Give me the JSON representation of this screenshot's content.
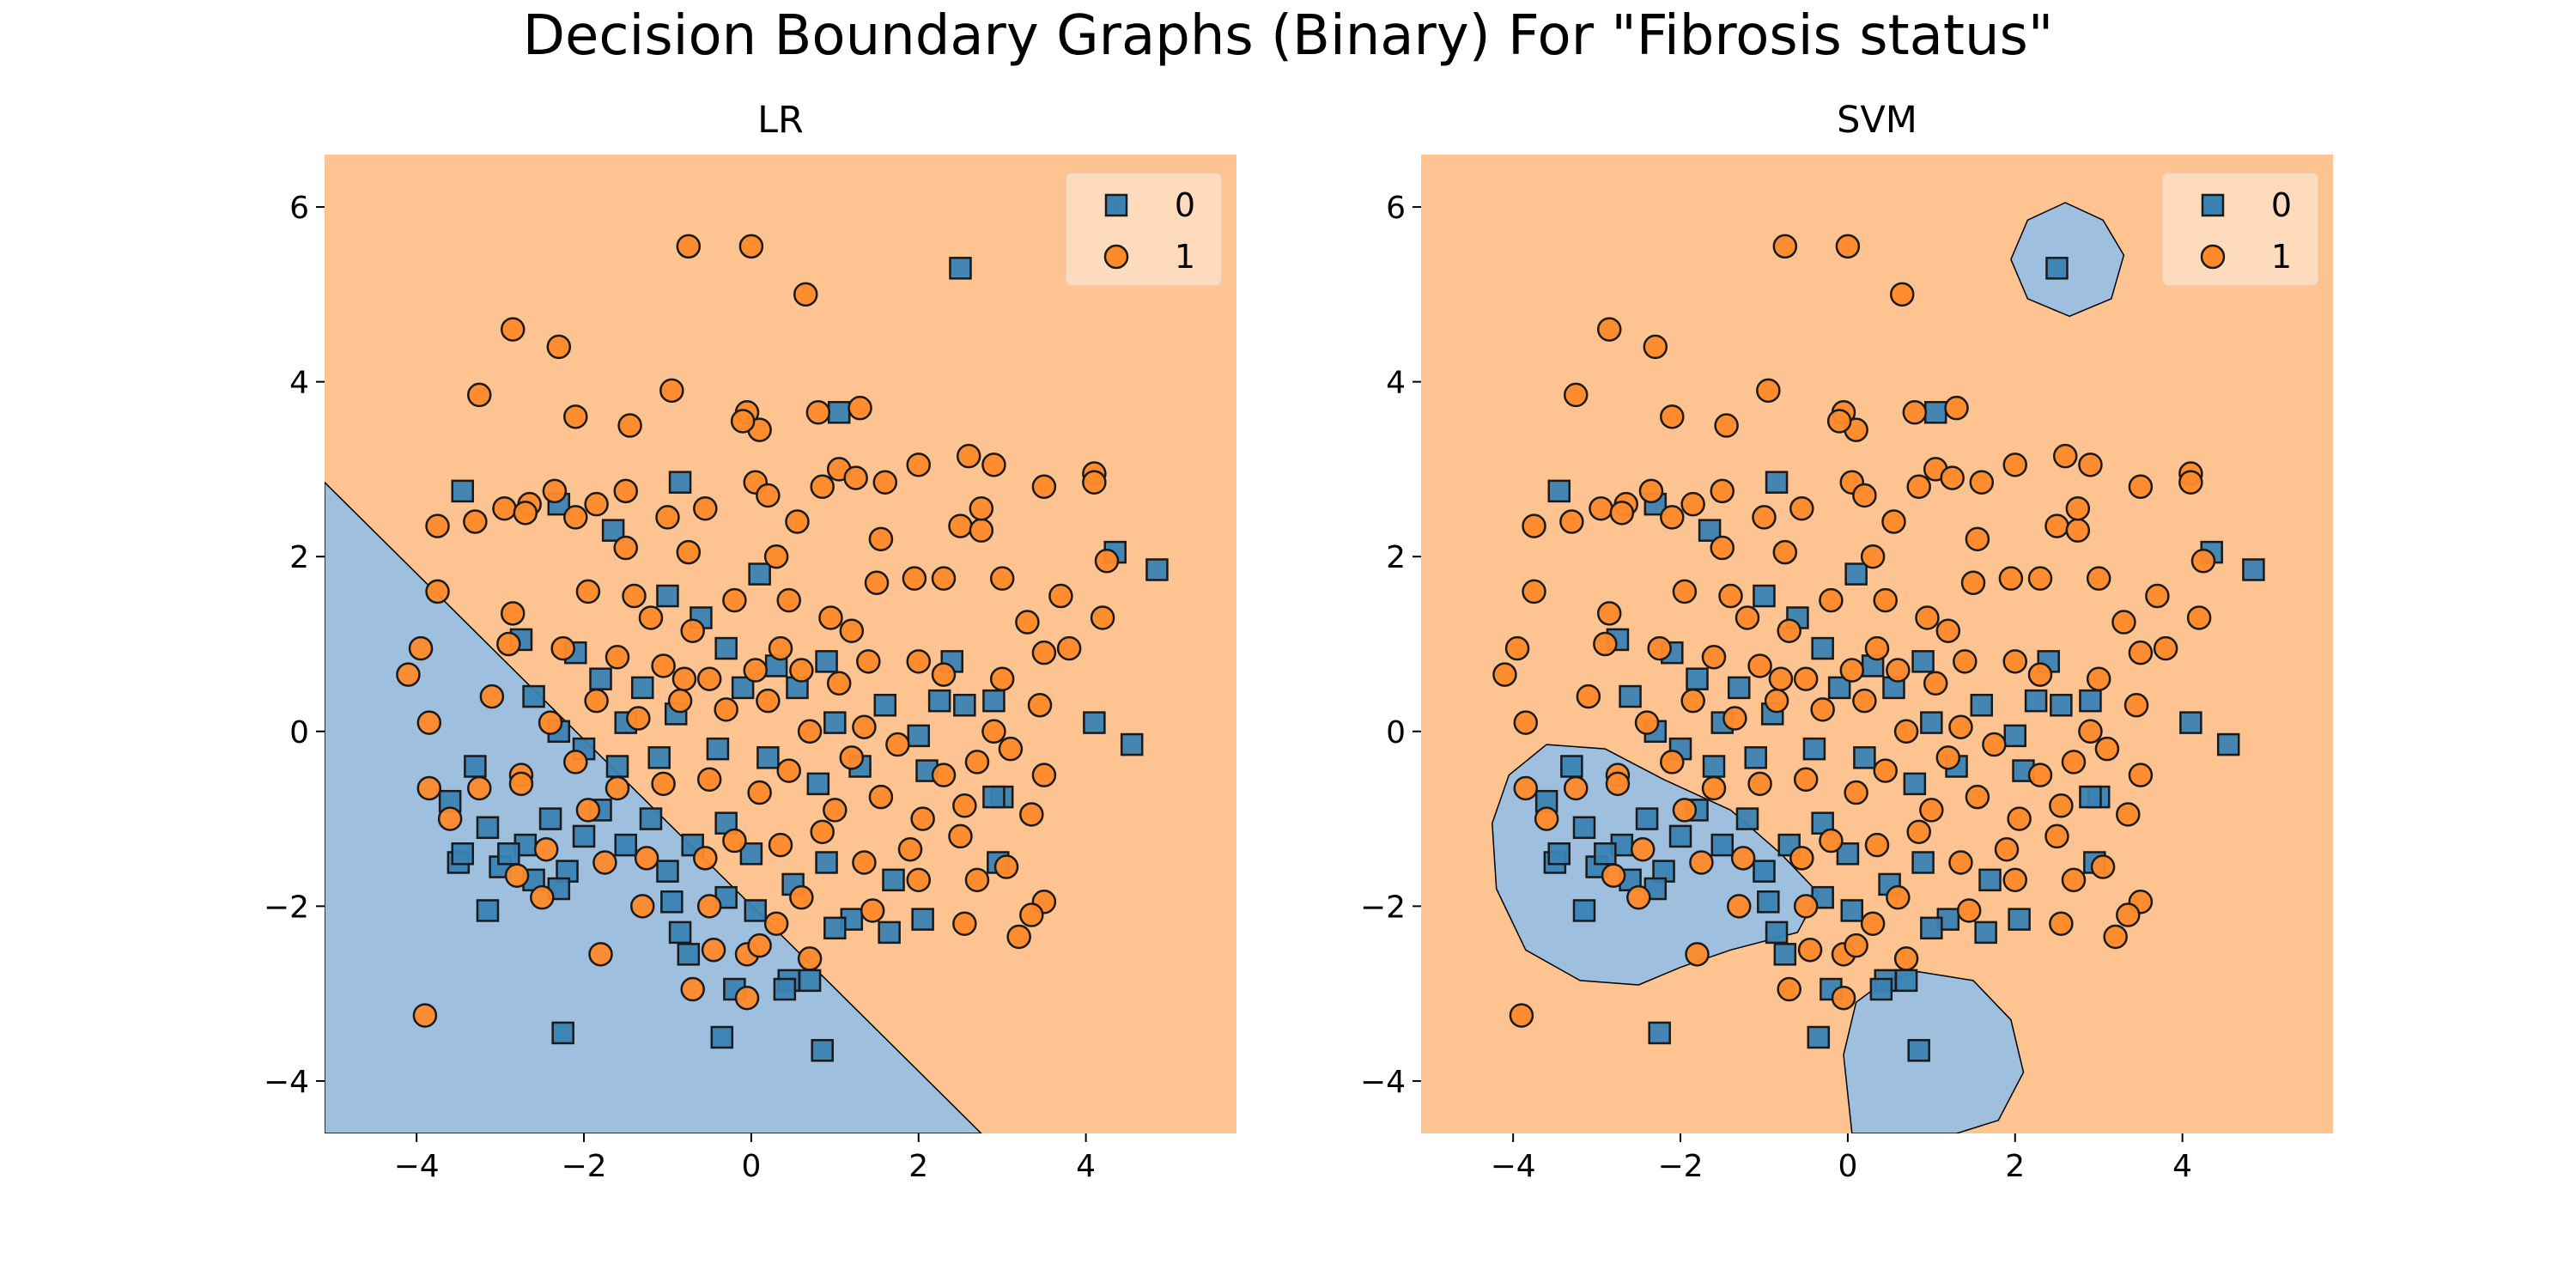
{
  "figure": {
    "title": "Decision Boundary Graphs (Binary) For \"Fibrosis status\""
  },
  "colors": {
    "class0_region": "#9ec0de",
    "class1_region": "#fdc391",
    "class0_marker": "#3a82b3",
    "class1_marker": "#ff8a2a",
    "marker_edge": "#1a1a1a"
  },
  "chart_data": [
    {
      "type": "scatter",
      "title": "LR",
      "xlabel": "",
      "ylabel": "",
      "xlim": [
        -5.1,
        5.8
      ],
      "ylim": [
        -4.6,
        6.6
      ],
      "xticks": [
        -4,
        -2,
        0,
        2,
        4
      ],
      "xtick_labels": [
        "−4",
        "−2",
        "0",
        "2",
        "4"
      ],
      "yticks": [
        -4,
        -2,
        0,
        2,
        4,
        6
      ],
      "ytick_labels": [
        "−4",
        "−2",
        "0",
        "2",
        "4",
        "6"
      ],
      "grid": false,
      "legend": {
        "position": "top-right",
        "entries": [
          {
            "label": "0",
            "marker": "square"
          },
          {
            "label": "1",
            "marker": "circle"
          }
        ]
      },
      "decision_regions": {
        "model": "linear",
        "class0_polygon": [
          [
            -5.1,
            2.85
          ],
          [
            2.75,
            -4.6
          ],
          [
            -5.1,
            -4.6
          ]
        ],
        "class1_fill": "rest of plot area"
      },
      "series": [
        {
          "name": "0",
          "marker": "square",
          "points": "shared.class0_points"
        },
        {
          "name": "1",
          "marker": "circle",
          "points": "shared.class1_points"
        }
      ]
    },
    {
      "type": "scatter",
      "title": "SVM",
      "xlabel": "",
      "ylabel": "",
      "xlim": [
        -5.1,
        5.8
      ],
      "ylim": [
        -4.6,
        6.6
      ],
      "xticks": [
        -4,
        -2,
        0,
        2,
        4
      ],
      "xtick_labels": [
        "−4",
        "−2",
        "0",
        "2",
        "4"
      ],
      "yticks": [
        -4,
        -2,
        0,
        2,
        4,
        6
      ],
      "ytick_labels": [
        "−4",
        "−2",
        "0",
        "2",
        "4",
        "6"
      ],
      "grid": false,
      "legend": {
        "position": "top-right",
        "entries": [
          {
            "label": "0",
            "marker": "square"
          },
          {
            "label": "1",
            "marker": "circle"
          }
        ]
      },
      "decision_regions": {
        "model": "rbf",
        "class0_regions": [
          [
            [
              2.6,
              6.05
            ],
            [
              3.05,
              5.85
            ],
            [
              3.3,
              5.45
            ],
            [
              3.15,
              4.95
            ],
            [
              2.65,
              4.75
            ],
            [
              2.15,
              4.95
            ],
            [
              1.95,
              5.4
            ],
            [
              2.15,
              5.85
            ]
          ],
          [
            [
              -3.6,
              -0.15
            ],
            [
              -2.9,
              -0.2
            ],
            [
              -2.2,
              -0.55
            ],
            [
              -1.4,
              -0.9
            ],
            [
              -0.8,
              -1.4
            ],
            [
              -0.35,
              -1.85
            ],
            [
              -0.6,
              -2.3
            ],
            [
              -1.4,
              -2.5
            ],
            [
              -2.0,
              -2.7
            ],
            [
              -2.5,
              -2.9
            ],
            [
              -3.2,
              -2.85
            ],
            [
              -3.85,
              -2.5
            ],
            [
              -4.2,
              -1.8
            ],
            [
              -4.25,
              -1.05
            ],
            [
              -4.05,
              -0.5
            ]
          ],
          [
            [
              -0.05,
              -3.7
            ],
            [
              0.1,
              -3.1
            ],
            [
              0.45,
              -2.85
            ],
            [
              0.85,
              -2.75
            ],
            [
              1.5,
              -2.85
            ],
            [
              1.95,
              -3.3
            ],
            [
              2.1,
              -3.9
            ],
            [
              1.8,
              -4.45
            ],
            [
              1.3,
              -4.6
            ],
            [
              0.05,
              -4.6
            ]
          ]
        ],
        "class1_fill": "rest of plot area"
      },
      "series": [
        {
          "name": "0",
          "marker": "square",
          "points": "shared.class0_points"
        },
        {
          "name": "1",
          "marker": "circle",
          "points": "shared.class1_points"
        }
      ]
    }
  ],
  "shared": {
    "class0_points": [
      [
        2.5,
        5.3
      ],
      [
        1.05,
        3.65
      ],
      [
        -3.45,
        2.75
      ],
      [
        -2.3,
        2.6
      ],
      [
        -0.85,
        2.85
      ],
      [
        -1.65,
        2.3
      ],
      [
        4.35,
        2.05
      ],
      [
        4.85,
        1.85
      ],
      [
        0.1,
        1.8
      ],
      [
        -2.75,
        1.05
      ],
      [
        -1.0,
        1.55
      ],
      [
        -0.6,
        1.3
      ],
      [
        -0.3,
        0.95
      ],
      [
        0.3,
        0.75
      ],
      [
        0.55,
        0.5
      ],
      [
        0.9,
        0.8
      ],
      [
        -2.1,
        0.9
      ],
      [
        -1.8,
        0.6
      ],
      [
        -1.3,
        0.5
      ],
      [
        -0.9,
        0.2
      ],
      [
        -1.5,
        0.1
      ],
      [
        -2.3,
        0.0
      ],
      [
        -2.6,
        0.4
      ],
      [
        -2.0,
        -0.2
      ],
      [
        -1.6,
        -0.4
      ],
      [
        -1.1,
        -0.3
      ],
      [
        -0.4,
        -0.2
      ],
      [
        0.2,
        -0.3
      ],
      [
        0.8,
        -0.6
      ],
      [
        1.3,
        -0.4
      ],
      [
        2.4,
        0.8
      ],
      [
        2.25,
        0.35
      ],
      [
        2.55,
        0.3
      ],
      [
        2.0,
        -0.05
      ],
      [
        2.1,
        -0.45
      ],
      [
        2.9,
        0.35
      ],
      [
        3.0,
        -0.75
      ],
      [
        2.95,
        -1.5
      ],
      [
        4.1,
        0.1
      ],
      [
        4.55,
        -0.15
      ],
      [
        -3.6,
        -0.8
      ],
      [
        -3.3,
        -0.4
      ],
      [
        -3.15,
        -1.1
      ],
      [
        -3.0,
        -1.55
      ],
      [
        -3.5,
        -1.5
      ],
      [
        -2.7,
        -1.3
      ],
      [
        -2.4,
        -1.0
      ],
      [
        -2.2,
        -1.6
      ],
      [
        -2.6,
        -1.7
      ],
      [
        -2.9,
        -1.4
      ],
      [
        -3.45,
        -1.4
      ],
      [
        -3.15,
        -2.05
      ],
      [
        -2.3,
        -1.8
      ],
      [
        -2.0,
        -1.2
      ],
      [
        -1.8,
        -0.9
      ],
      [
        -1.5,
        -1.3
      ],
      [
        -1.2,
        -1.0
      ],
      [
        -1.0,
        -1.6
      ],
      [
        -0.7,
        -1.3
      ],
      [
        -0.3,
        -1.05
      ],
      [
        0.0,
        -1.4
      ],
      [
        -0.3,
        -1.9
      ],
      [
        0.05,
        -2.05
      ],
      [
        0.5,
        -1.75
      ],
      [
        0.9,
        -1.5
      ],
      [
        1.2,
        -2.15
      ],
      [
        1.7,
        -1.7
      ],
      [
        -0.95,
        -1.95
      ],
      [
        -0.85,
        -2.3
      ],
      [
        -0.75,
        -2.55
      ],
      [
        -0.2,
        -2.95
      ],
      [
        0.45,
        -2.85
      ],
      [
        0.7,
        -2.85
      ],
      [
        0.4,
        -2.95
      ],
      [
        0.85,
        -3.65
      ],
      [
        -0.35,
        -3.5
      ],
      [
        -2.25,
        -3.45
      ],
      [
        1.65,
        -2.3
      ],
      [
        2.05,
        -2.15
      ],
      [
        1.0,
        -2.25
      ],
      [
        2.9,
        -0.75
      ],
      [
        1.6,
        0.3
      ],
      [
        1.0,
        0.1
      ],
      [
        -0.1,
        0.5
      ]
    ],
    "class1_points": [
      [
        -0.75,
        5.55
      ],
      [
        0.0,
        5.55
      ],
      [
        0.65,
        5.0
      ],
      [
        -2.85,
        4.6
      ],
      [
        -2.3,
        4.4
      ],
      [
        -3.25,
        3.85
      ],
      [
        -0.95,
        3.9
      ],
      [
        -2.1,
        3.6
      ],
      [
        -1.45,
        3.5
      ],
      [
        -0.05,
        3.65
      ],
      [
        0.1,
        3.45
      ],
      [
        -0.1,
        3.55
      ],
      [
        0.8,
        3.65
      ],
      [
        1.3,
        3.7
      ],
      [
        2.6,
        3.15
      ],
      [
        1.05,
        3.0
      ],
      [
        1.6,
        2.85
      ],
      [
        2.0,
        3.05
      ],
      [
        2.9,
        3.05
      ],
      [
        4.1,
        2.95
      ],
      [
        4.1,
        2.85
      ],
      [
        3.5,
        2.8
      ],
      [
        1.25,
        2.9
      ],
      [
        0.85,
        2.8
      ],
      [
        -2.95,
        2.55
      ],
      [
        -2.65,
        2.6
      ],
      [
        -2.35,
        2.75
      ],
      [
        -1.85,
        2.6
      ],
      [
        -1.5,
        2.75
      ],
      [
        -1.0,
        2.45
      ],
      [
        -0.55,
        2.55
      ],
      [
        0.05,
        2.85
      ],
      [
        0.2,
        2.7
      ],
      [
        -3.75,
        2.35
      ],
      [
        -3.3,
        2.4
      ],
      [
        -2.7,
        2.5
      ],
      [
        -2.1,
        2.45
      ],
      [
        -1.5,
        2.1
      ],
      [
        -0.75,
        2.05
      ],
      [
        0.3,
        2.0
      ],
      [
        0.55,
        2.4
      ],
      [
        1.55,
        2.2
      ],
      [
        2.5,
        2.35
      ],
      [
        2.75,
        2.3
      ],
      [
        2.75,
        2.55
      ],
      [
        1.5,
        1.7
      ],
      [
        1.95,
        1.75
      ],
      [
        2.3,
        1.75
      ],
      [
        3.0,
        1.75
      ],
      [
        3.7,
        1.55
      ],
      [
        4.2,
        1.3
      ],
      [
        4.25,
        1.95
      ],
      [
        3.3,
        1.25
      ],
      [
        -3.75,
        1.6
      ],
      [
        -2.85,
        1.35
      ],
      [
        -1.95,
        1.6
      ],
      [
        -1.4,
        1.55
      ],
      [
        -1.2,
        1.3
      ],
      [
        -0.7,
        1.15
      ],
      [
        -0.2,
        1.5
      ],
      [
        0.45,
        1.5
      ],
      [
        0.95,
        1.3
      ],
      [
        1.2,
        1.15
      ],
      [
        -4.1,
        0.65
      ],
      [
        -3.95,
        0.95
      ],
      [
        -2.9,
        1.0
      ],
      [
        -2.25,
        0.95
      ],
      [
        -1.6,
        0.85
      ],
      [
        -1.05,
        0.75
      ],
      [
        -0.5,
        0.6
      ],
      [
        0.05,
        0.7
      ],
      [
        0.6,
        0.7
      ],
      [
        1.05,
        0.55
      ],
      [
        1.4,
        0.8
      ],
      [
        2.0,
        0.8
      ],
      [
        2.3,
        0.65
      ],
      [
        3.0,
        0.6
      ],
      [
        3.5,
        0.9
      ],
      [
        3.8,
        0.95
      ],
      [
        2.9,
        0.0
      ],
      [
        3.45,
        0.3
      ],
      [
        -3.85,
        0.1
      ],
      [
        -3.1,
        0.4
      ],
      [
        -2.4,
        0.1
      ],
      [
        -1.85,
        0.35
      ],
      [
        -1.35,
        0.15
      ],
      [
        -0.85,
        0.35
      ],
      [
        -0.3,
        0.25
      ],
      [
        0.2,
        0.35
      ],
      [
        0.7,
        0.0
      ],
      [
        1.35,
        0.05
      ],
      [
        1.75,
        -0.15
      ],
      [
        2.3,
        -0.5
      ],
      [
        2.7,
        -0.35
      ],
      [
        3.1,
        -0.2
      ],
      [
        -3.85,
        -0.65
      ],
      [
        -3.25,
        -0.65
      ],
      [
        -2.75,
        -0.5
      ],
      [
        -2.1,
        -0.35
      ],
      [
        -1.6,
        -0.65
      ],
      [
        -1.05,
        -0.6
      ],
      [
        -0.5,
        -0.55
      ],
      [
        0.1,
        -0.7
      ],
      [
        0.45,
        -0.45
      ],
      [
        1.0,
        -0.9
      ],
      [
        1.55,
        -0.75
      ],
      [
        2.05,
        -1.0
      ],
      [
        2.55,
        -0.85
      ],
      [
        3.35,
        -0.95
      ],
      [
        3.5,
        -0.5
      ],
      [
        -3.6,
        -1.0
      ],
      [
        -2.8,
        -1.65
      ],
      [
        -2.45,
        -1.35
      ],
      [
        -1.75,
        -1.5
      ],
      [
        -1.25,
        -1.45
      ],
      [
        -0.55,
        -1.45
      ],
      [
        0.35,
        -1.3
      ],
      [
        0.85,
        -1.15
      ],
      [
        1.35,
        -1.5
      ],
      [
        1.9,
        -1.35
      ],
      [
        2.5,
        -1.2
      ],
      [
        3.05,
        -1.55
      ],
      [
        -2.5,
        -1.9
      ],
      [
        -1.3,
        -2.0
      ],
      [
        -0.5,
        -2.0
      ],
      [
        0.3,
        -2.2
      ],
      [
        0.6,
        -1.9
      ],
      [
        1.45,
        -2.05
      ],
      [
        2.0,
        -1.7
      ],
      [
        2.7,
        -1.7
      ],
      [
        3.5,
        -1.95
      ],
      [
        3.35,
        -2.1
      ],
      [
        3.2,
        -2.35
      ],
      [
        2.55,
        -2.2
      ],
      [
        -1.8,
        -2.55
      ],
      [
        -0.45,
        -2.5
      ],
      [
        -0.05,
        -2.55
      ],
      [
        0.1,
        -2.45
      ],
      [
        0.7,
        -2.6
      ],
      [
        -0.7,
        -2.95
      ],
      [
        -0.05,
        -3.05
      ],
      [
        -3.9,
        -3.25
      ],
      [
        -2.75,
        -0.6
      ],
      [
        -0.8,
        0.6
      ],
      [
        0.35,
        0.95
      ],
      [
        1.2,
        -0.3
      ],
      [
        -1.95,
        -0.9
      ],
      [
        -0.2,
        -1.25
      ]
    ]
  }
}
